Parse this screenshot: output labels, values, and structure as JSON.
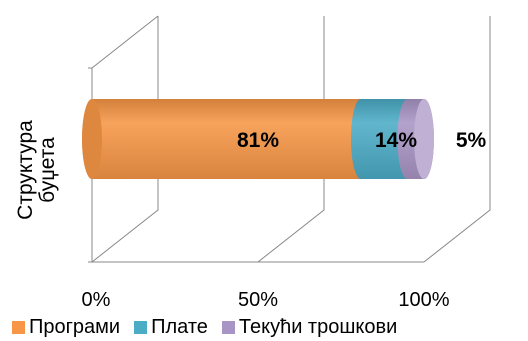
{
  "chart_data": {
    "type": "bar",
    "orientation": "horizontal",
    "stacked": "percent",
    "style": "3d-cylinder",
    "categories": [
      "Структура буџета"
    ],
    "series": [
      {
        "name": "Програми",
        "values": [
          81
        ],
        "label": "81%",
        "color": "#F79646"
      },
      {
        "name": "Плате",
        "values": [
          14
        ],
        "label": "14%",
        "color": "#4BACC6"
      },
      {
        "name": "Текући трошкови",
        "values": [
          5
        ],
        "label": "5%",
        "color": "#A995C5"
      }
    ],
    "xticks": [
      "0%",
      "50%",
      "100%"
    ],
    "xlim": [
      0,
      100
    ],
    "ylabel": "Структура буџета",
    "ylabel_lines": [
      "Структура",
      "буџета"
    ],
    "legend_position": "bottom",
    "grid": true
  }
}
